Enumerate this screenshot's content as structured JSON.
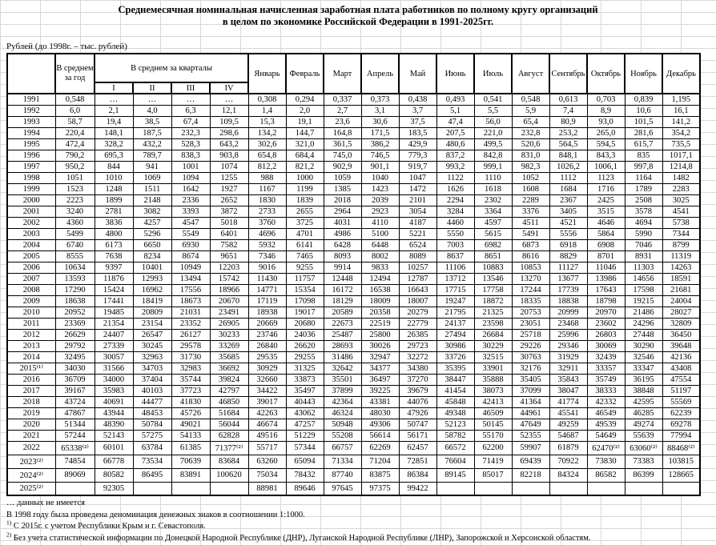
{
  "title": {
    "line1": "Среднемесячная номинальная начисленная заработная плата работников по полному кругу организаций",
    "line2": "в целом по экономике Российской Федерации в 1991-2025гг."
  },
  "unit_note": "Рублей (до 1998г. – тыс. рублей)",
  "table": {
    "annual_header": "В среднем за год",
    "quarters_header": "В среднем за кварталы",
    "quarter_labels": [
      "I",
      "II",
      "III",
      "IV"
    ],
    "month_labels": [
      "Январь",
      "Февраль",
      "Март",
      "Апрель",
      "Май",
      "Июнь",
      "Июль",
      "Август",
      "Сентябрь",
      "Октябрь",
      "Ноябрь",
      "Декабрь"
    ],
    "rows": [
      {
        "year": "1991",
        "cells": [
          "0,548",
          "…",
          "…",
          "…",
          "…",
          "0,308",
          "0,294",
          "0,337",
          "0,373",
          "0,438",
          "0,493",
          "0,541",
          "0,548",
          "0,613",
          "0,703",
          "0,839",
          "1,195"
        ]
      },
      {
        "year": "1992",
        "cells": [
          "6,0",
          "2,1",
          "4,0",
          "6,3",
          "12,1",
          "1,4",
          "2,0",
          "2,7",
          "3,1",
          "3,7",
          "5,1",
          "5,5",
          "5,9",
          "7,4",
          "8,9",
          "10,6",
          "16,1"
        ]
      },
      {
        "year": "1993",
        "cells": [
          "58,7",
          "19,4",
          "38,5",
          "67,4",
          "109,5",
          "15,3",
          "19,1",
          "23,6",
          "30,6",
          "37,5",
          "47,4",
          "56,0",
          "65,4",
          "80,9",
          "93,0",
          "101,5",
          "141,2"
        ]
      },
      {
        "year": "1994",
        "cells": [
          "220,4",
          "148,1",
          "187,5",
          "232,3",
          "298,6",
          "134,2",
          "144,7",
          "164,8",
          "171,5",
          "183,5",
          "207,5",
          "221,0",
          "232,8",
          "253,2",
          "265,0",
          "281,6",
          "354,2"
        ]
      },
      {
        "year": "1995",
        "cells": [
          "472,4",
          "328,2",
          "432,2",
          "528,3",
          "643,2",
          "302,6",
          "321,0",
          "361,5",
          "386,2",
          "429,9",
          "480,6",
          "499,5",
          "520,6",
          "564,5",
          "594,5",
          "615,7",
          "735,5"
        ]
      },
      {
        "year": "1996",
        "cells": [
          "790,2",
          "695,3",
          "789,7",
          "838,3",
          "903,8",
          "654,8",
          "684,4",
          "745,0",
          "746,5",
          "779,3",
          "837,2",
          "842,8",
          "831,0",
          "848,1",
          "843,3",
          "835",
          "1017,1"
        ]
      },
      {
        "year": "1997",
        "cells": [
          "950,2",
          "844",
          "941",
          "1001",
          "1074",
          "812,2",
          "821,2",
          "902,9",
          "901,1",
          "919,7",
          "993,2",
          "999,1",
          "982,3",
          "1026,2",
          "1006,1",
          "997,8",
          "1214,8"
        ]
      },
      {
        "year": "1998",
        "cells": [
          "1051",
          "1010",
          "1069",
          "1094",
          "1255",
          "988",
          "1000",
          "1059",
          "1040",
          "1047",
          "1122",
          "1110",
          "1052",
          "1112",
          "1123",
          "1164",
          "1482"
        ]
      },
      {
        "year": "1999",
        "cells": [
          "1523",
          "1248",
          "1511",
          "1642",
          "1927",
          "1167",
          "1199",
          "1385",
          "1423",
          "1472",
          "1626",
          "1618",
          "1608",
          "1684",
          "1716",
          "1789",
          "2283"
        ]
      },
      {
        "year": "2000",
        "cells": [
          "2223",
          "1899",
          "2148",
          "2336",
          "2652",
          "1830",
          "1839",
          "2018",
          "2039",
          "2101",
          "2294",
          "2302",
          "2289",
          "2367",
          "2425",
          "2508",
          "3025"
        ]
      },
      {
        "year": "2001",
        "cells": [
          "3240",
          "2781",
          "3082",
          "3393",
          "3872",
          "2733",
          "2655",
          "2964",
          "2923",
          "3054",
          "3284",
          "3364",
          "3376",
          "3405",
          "3515",
          "3578",
          "4541"
        ]
      },
      {
        "year": "2002",
        "cells": [
          "4360",
          "3836",
          "4257",
          "4547",
          "5018",
          "3760",
          "3725",
          "4031",
          "4110",
          "4187",
          "4460",
          "4597",
          "4511",
          "4521",
          "4646",
          "4694",
          "5738"
        ]
      },
      {
        "year": "2003",
        "cells": [
          "5499",
          "4800",
          "5296",
          "5549",
          "6401",
          "4696",
          "4701",
          "4986",
          "5100",
          "5221",
          "5550",
          "5615",
          "5491",
          "5556",
          "5864",
          "5990",
          "7344"
        ]
      },
      {
        "year": "2004",
        "cells": [
          "6740",
          "6173",
          "6650",
          "6930",
          "7582",
          "5932",
          "6141",
          "6428",
          "6448",
          "6524",
          "7003",
          "6982",
          "6873",
          "6918",
          "6908",
          "7046",
          "8799"
        ]
      },
      {
        "year": "2005",
        "cells": [
          "8555",
          "7638",
          "8234",
          "8674",
          "9651",
          "7346",
          "7465",
          "8093",
          "8002",
          "8089",
          "8637",
          "8651",
          "8616",
          "8829",
          "8701",
          "8931",
          "11319"
        ]
      },
      {
        "year": "2006",
        "cells": [
          "10634",
          "9397",
          "10401",
          "10949",
          "12203",
          "9016",
          "9255",
          "9914",
          "9833",
          "10257",
          "11106",
          "10883",
          "10853",
          "11127",
          "11046",
          "11303",
          "14263"
        ]
      },
      {
        "year": "2007",
        "cells": [
          "13593",
          "11876",
          "12993",
          "13494",
          "15742",
          "11430",
          "11757",
          "12448",
          "12494",
          "12787",
          "13712",
          "13546",
          "13270",
          "13677",
          "13986",
          "14656",
          "18591"
        ]
      },
      {
        "year": "2008",
        "cells": [
          "17290",
          "15424",
          "16962",
          "17556",
          "18966",
          "14771",
          "15354",
          "16172",
          "16538",
          "16643",
          "17715",
          "17758",
          "17244",
          "17739",
          "17643",
          "17598",
          "21681"
        ]
      },
      {
        "year": "2009",
        "cells": [
          "18638",
          "17441",
          "18419",
          "18673",
          "20670",
          "17119",
          "17098",
          "18129",
          "18009",
          "18007",
          "19247",
          "18872",
          "18335",
          "18838",
          "18798",
          "19215",
          "24004"
        ]
      },
      {
        "year": "2010",
        "cells": [
          "20952",
          "19485",
          "20809",
          "21031",
          "23491",
          "18938",
          "19017",
          "20589",
          "20358",
          "20279",
          "21795",
          "21325",
          "20753",
          "20999",
          "20970",
          "21486",
          "28027"
        ]
      },
      {
        "year": "2011",
        "cells": [
          "23369",
          "21354",
          "23154",
          "23352",
          "26905",
          "20669",
          "20680",
          "22673",
          "22519",
          "22779",
          "24137",
          "23598",
          "23051",
          "23468",
          "23602",
          "24296",
          "32809"
        ]
      },
      {
        "year": "2012",
        "cells": [
          "26629",
          "24407",
          "26547",
          "26127",
          "30233",
          "23746",
          "24036",
          "25487",
          "25800",
          "26385",
          "27494",
          "26684",
          "25718",
          "25996",
          "26803",
          "27448",
          "36450"
        ]
      },
      {
        "year": "2013",
        "cells": [
          "29792",
          "27339",
          "30245",
          "29578",
          "33269",
          "26840",
          "26620",
          "28693",
          "30026",
          "29723",
          "30986",
          "30229",
          "29226",
          "29346",
          "30069",
          "30290",
          "39648"
        ]
      },
      {
        "year": "2014",
        "cells": [
          "32495",
          "30057",
          "32963",
          "31730",
          "35685",
          "29535",
          "29255",
          "31486",
          "32947",
          "32272",
          "33726",
          "32515",
          "30763",
          "31929",
          "32439",
          "32546",
          "42136"
        ]
      },
      {
        "year": "2015⁽¹⁾",
        "cells": [
          "34030",
          "31566",
          "34703",
          "32983",
          "36692",
          "30929",
          "31325",
          "32642",
          "34377",
          "34380",
          "35395",
          "33901",
          "32176",
          "32911",
          "33357",
          "33347",
          "43408"
        ]
      },
      {
        "year": "2016",
        "cells": [
          "36709",
          "34000",
          "37404",
          "35744",
          "39824",
          "32660",
          "33873",
          "35501",
          "36497",
          "37270",
          "38447",
          "35888",
          "35405",
          "35843",
          "35749",
          "36195",
          "47554"
        ]
      },
      {
        "year": "2017",
        "cells": [
          "39167",
          "35983",
          "40103",
          "37723",
          "42797",
          "34422",
          "35497",
          "37899",
          "39225",
          "39679",
          "41454",
          "38073",
          "37099",
          "38047",
          "38333",
          "38848",
          "51197"
        ]
      },
      {
        "year": "2018",
        "cells": [
          "43724",
          "40691",
          "44477",
          "41830",
          "46850",
          "39017",
          "40443",
          "42364",
          "43381",
          "44076",
          "45848",
          "42413",
          "41364",
          "41774",
          "42332",
          "42595",
          "55569"
        ]
      },
      {
        "year": "2019",
        "cells": [
          "47867",
          "43944",
          "48453",
          "45726",
          "51684",
          "42263",
          "43062",
          "46324",
          "48030",
          "47926",
          "49348",
          "46509",
          "44961",
          "45541",
          "46549",
          "46285",
          "62239"
        ]
      },
      {
        "year": "2020",
        "cells": [
          "51344",
          "48390",
          "50784",
          "49021",
          "56044",
          "46674",
          "47257",
          "50948",
          "49306",
          "50747",
          "52123",
          "50145",
          "47649",
          "49259",
          "49539",
          "49274",
          "69278"
        ]
      },
      {
        "year": "2021",
        "cells": [
          "57244",
          "52143",
          "57275",
          "54133",
          "62828",
          "49516",
          "51229",
          "55208",
          "56614",
          "56171",
          "58782",
          "55170",
          "52355",
          "54687",
          "54649",
          "55639",
          "77994"
        ]
      },
      {
        "year": "2022",
        "cells": [
          "65338⁽²⁾",
          "60101",
          "63784",
          "61385",
          "71377⁽²⁾",
          "55717",
          "57344",
          "66757",
          "62269",
          "62457",
          "66572",
          "62200",
          "59907",
          "61879",
          "62470⁽²⁾",
          "63060⁽²⁾",
          "88468⁽²⁾"
        ]
      },
      {
        "year": "2023⁽²⁾",
        "cells": [
          "74854",
          "66778",
          "73534",
          "70639",
          "83684",
          "63260",
          "65094",
          "71334",
          "71204",
          "72851",
          "76604",
          "71419",
          "69439",
          "70922",
          "73830",
          "73383",
          "103815"
        ]
      },
      {
        "year": "2024⁽²⁾",
        "cells": [
          "89069",
          "80582",
          "86495",
          "83891",
          "100620",
          "75034",
          "78432",
          "87740",
          "83875",
          "86384",
          "89145",
          "85017",
          "82218",
          "84324",
          "86582",
          "86399",
          "128665"
        ]
      },
      {
        "year": "2025⁽²⁾",
        "cells": [
          "",
          "92305",
          "",
          "",
          "",
          "88981",
          "89646",
          "97645",
          "97375",
          "99422",
          "",
          "",
          "",
          "",
          "",
          "",
          ""
        ]
      }
    ]
  },
  "footnotes": [
    {
      "marker": "",
      "text": "… данных не имеется"
    },
    {
      "marker": "",
      "text": "В 1998 году была проведена  деноминация денежных знаков в соотношении 1:1000."
    },
    {
      "marker": "1)",
      "text": "С 2015г. с учетом Республики Крым и г. Севастополя."
    },
    {
      "marker": "2)",
      "text": "Без учета статистической информации по Донецкой Народной Республике (ДНР), Луганской Народной Республике (ЛНР), Запорожской и Херсонской областям."
    }
  ]
}
